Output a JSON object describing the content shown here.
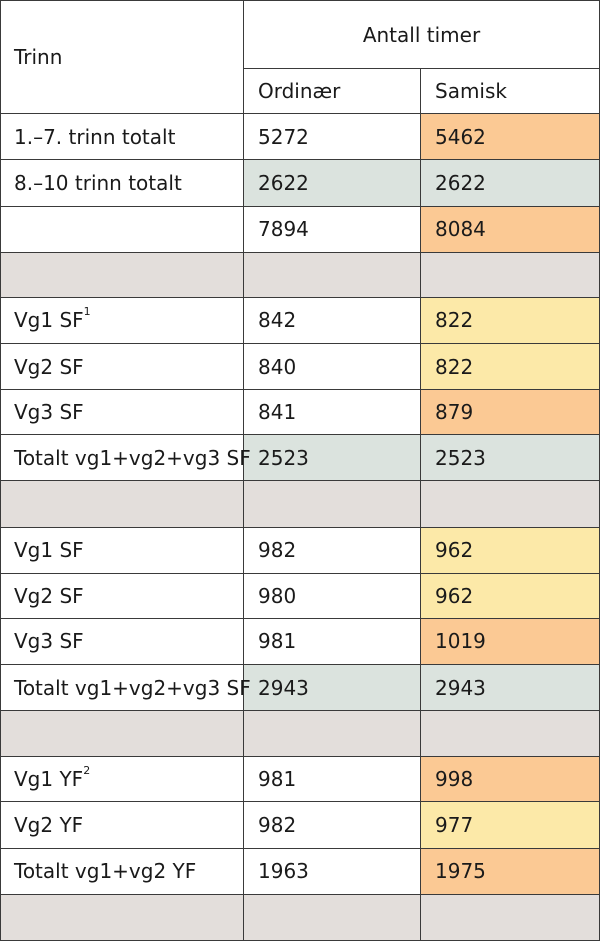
{
  "header": {
    "trinn": "Trinn",
    "antall_timer": "Antall timer",
    "ordinaer": "Ordinær",
    "samisk": "Samisk"
  },
  "rows": [
    {
      "label": "1.–7. trinn totalt",
      "sup": "",
      "ordinaer": "5272",
      "samisk": "5462"
    },
    {
      "label": "8.–10 trinn totalt",
      "sup": "",
      "ordinaer": "2622",
      "samisk": "2622"
    },
    {
      "label": "",
      "sup": "",
      "ordinaer": "7894",
      "samisk": "8084"
    },
    {
      "label": "",
      "sup": "",
      "ordinaer": "",
      "samisk": ""
    },
    {
      "label": "Vg1 SF",
      "sup": "1",
      "ordinaer": "842",
      "samisk": "822"
    },
    {
      "label": "Vg2 SF",
      "sup": "",
      "ordinaer": "840",
      "samisk": "822"
    },
    {
      "label": "Vg3 SF",
      "sup": "",
      "ordinaer": "841",
      "samisk": "879"
    },
    {
      "label": "Totalt vg1+vg2+vg3 SF",
      "sup": "",
      "ordinaer": "2523",
      "samisk": "2523"
    },
    {
      "label": "",
      "sup": "",
      "ordinaer": "",
      "samisk": ""
    },
    {
      "label": "Vg1 SF",
      "sup": "",
      "ordinaer": "982",
      "samisk": "962"
    },
    {
      "label": "Vg2 SF",
      "sup": "",
      "ordinaer": "980",
      "samisk": "962"
    },
    {
      "label": "Vg3 SF",
      "sup": "",
      "ordinaer": "981",
      "samisk": "1019"
    },
    {
      "label": "Totalt vg1+vg2+vg3 SF",
      "sup": "",
      "ordinaer": "2943",
      "samisk": "2943"
    },
    {
      "label": "",
      "sup": "",
      "ordinaer": "",
      "samisk": ""
    },
    {
      "label": "Vg1 YF",
      "sup": "2",
      "ordinaer": "981",
      "samisk": "998"
    },
    {
      "label": "Vg2 YF",
      "sup": "",
      "ordinaer": "982",
      "samisk": "977"
    },
    {
      "label": "Totalt vg1+vg2 YF",
      "sup": "",
      "ordinaer": "1963",
      "samisk": "1975"
    },
    {
      "label": "",
      "sup": "",
      "ordinaer": "",
      "samisk": ""
    }
  ],
  "colors": {
    "orange": "#fbc994",
    "yellow": "#fce9a8",
    "teal": "#dbe3de",
    "grey": "#e3dedb"
  }
}
